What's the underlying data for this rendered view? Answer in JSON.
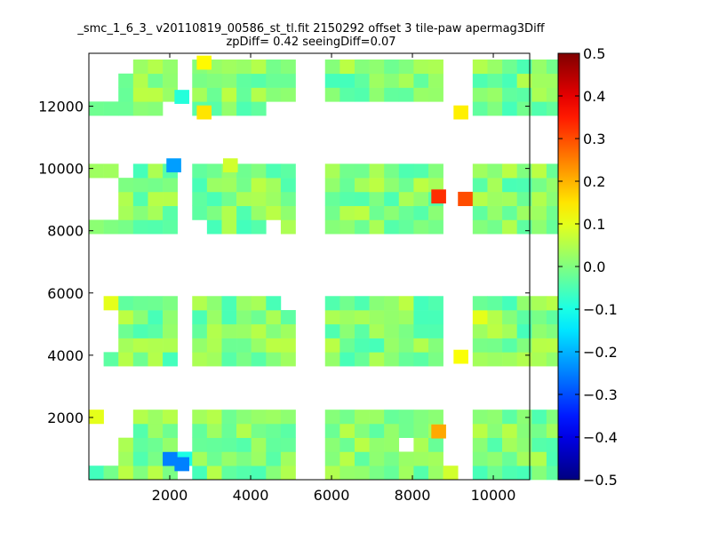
{
  "chart_data": {
    "type": "heatmap",
    "title": "_smc_1_6_3_ v20110819_00586_st_tl.fit 2150292 offset 3 tile-paw apermag3Diff",
    "subtitle": "zpDiff= 0.42 seeingDiff=0.07",
    "xlabel": "",
    "ylabel": "",
    "xlim": [
      0,
      10900
    ],
    "ylim": [
      0,
      13700
    ],
    "x_ticks": [
      "2000",
      "4000",
      "6000",
      "8000",
      "10000"
    ],
    "y_ticks": [
      "2000",
      "4000",
      "6000",
      "8000",
      "10000",
      "12000"
    ],
    "colormap": "jet",
    "colorbar": {
      "range": [
        -0.5,
        0.5
      ],
      "ticks": [
        "0.5",
        "0.4",
        "0.3",
        "0.2",
        "0.1",
        "0.0",
        "−0.1",
        "−0.2",
        "−0.3",
        "−0.4",
        "−0.5"
      ]
    },
    "cell_size": [
      365,
      450
    ],
    "x_origin": 0,
    "y_origin": 0,
    "rows": [
      {
        "y0": 0,
        "cells": "aaaaaa_aaaaaaa__aaaaaaaab_aaaaaaa"
      },
      {
        "y0": 450,
        "cells": "__aaaAHaaaaaaa__aaaaaaaa__aaaaaaa"
      },
      {
        "y0": 900,
        "cells": "__aaaa_aaaaaaa__aaaaa_aa__aaaaaaa"
      },
      {
        "y0": 1350,
        "cells": "___aaa_aaaaaaa__aaaaaaaa__aaaaaaa"
      },
      {
        "y0": 1800,
        "cells": "c__aaa_aaaaaaa__aaaaaaaa__aaaaaaa"
      },
      {
        "y0": 3650,
        "cells": "_aaaaa_aaaaaaa__aaaaaaaa__aaaaaaa"
      },
      {
        "y0": 4100,
        "cells": "__aaaa_aaaaaaa__aaaaaaaa__aaaaaaa"
      },
      {
        "y0": 4550,
        "cells": "__aaaa_aaaaaaa__aaaaaaaa__aaaaaaa"
      },
      {
        "y0": 5000,
        "cells": "__aaaa_aaaaaaa__aaaaaaaa__caaaaaa"
      },
      {
        "y0": 5450,
        "cells": "_caaaa_aaaaaa___aaaaaaaa__aaaaaaa"
      },
      {
        "y0": 7900,
        "cells": "aaaaaa__aaaa_a__aaaaaaaa__aaaaaaa"
      },
      {
        "y0": 8350,
        "cells": "__aaaa_aaaaaaa__aaaaaaaa__aaaaaaa"
      },
      {
        "y0": 8800,
        "cells": "__aaaa_aaaaaaa__aaaaaaaa_Daaaaaaa"
      },
      {
        "y0": 9250,
        "cells": "__aaaa_aaaaaaa__aaaaaaaa__aaaaaaa"
      },
      {
        "y0": 9700,
        "cells": "aa_aaa_aaaaaaa__aaaaaaaa__aaaaaaa"
      },
      {
        "y0": 11700,
        "cells": "aaaaa__aaaaa______________aaaaaaa"
      },
      {
        "y0": 12150,
        "cells": "__aaaa_aaaaaaa__aaaaaaaa__aaaaaaa"
      },
      {
        "y0": 12600,
        "cells": "__aaaa_aaaaaaa__aaaaaaaa__aaaaaaa"
      },
      {
        "y0": 13050,
        "cells": "___aaa_aaaaaaa__aaaaaaaa__aaaaaaa"
      }
    ],
    "palette": {
      "a": 0.0,
      "b": 0.08,
      "c": 0.1,
      "A": -0.25,
      "D": 0.3,
      "H": -0.1
    },
    "cell_values": [
      {
        "x": 2100,
        "y": 10100,
        "value": -0.22
      },
      {
        "x": 2300,
        "y": 500,
        "value": -0.25
      },
      {
        "x": 3500,
        "y": 10100,
        "value": 0.08
      },
      {
        "x": 8650,
        "y": 9100,
        "value": 0.33
      },
      {
        "x": 8650,
        "y": 1550,
        "value": 0.21
      },
      {
        "x": 9200,
        "y": 3950,
        "value": 0.12
      },
      {
        "x": 9200,
        "y": 11800,
        "value": 0.14
      },
      {
        "x": 2850,
        "y": 11800,
        "value": 0.15
      },
      {
        "x": 2850,
        "y": 13400,
        "value": 0.13
      },
      {
        "x": 2300,
        "y": 12300,
        "value": -0.09
      }
    ]
  }
}
